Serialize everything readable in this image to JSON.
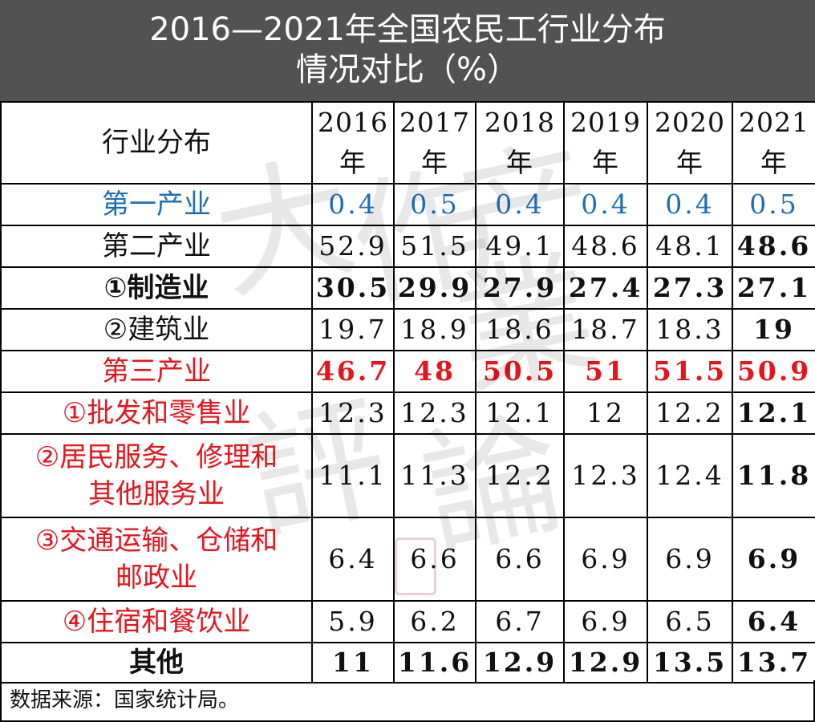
{
  "title": {
    "line1": "2016—2021年全国农民工行业分布",
    "line2": "情况对比（%）"
  },
  "header": {
    "category_label": "行业分布",
    "years": [
      {
        "top": "2016",
        "bottom": "年"
      },
      {
        "top": "2017",
        "bottom": "年"
      },
      {
        "top": "2018",
        "bottom": "年"
      },
      {
        "top": "2019",
        "bottom": "年"
      },
      {
        "top": "2020",
        "bottom": "年"
      },
      {
        "top": "2021",
        "bottom": "年"
      }
    ]
  },
  "rows": [
    {
      "label": "第一产业",
      "values": [
        "0.4",
        "0.5",
        "0.4",
        "0.4",
        "0.4",
        "0.5"
      ]
    },
    {
      "label": "第二产业",
      "values": [
        "52.9",
        "51.5",
        "49.1",
        "48.6",
        "48.1",
        "48.6"
      ]
    },
    {
      "label": "①制造业",
      "values": [
        "30.5",
        "29.9",
        "27.9",
        "27.4",
        "27.3",
        "27.1"
      ]
    },
    {
      "label": "②建筑业",
      "values": [
        "19.7",
        "18.9",
        "18.6",
        "18.7",
        "18.3",
        "19"
      ]
    },
    {
      "label": "第三产业",
      "values": [
        "46.7",
        "48",
        "50.5",
        "51",
        "51.5",
        "50.9"
      ]
    },
    {
      "label": "①批发和零售业",
      "values": [
        "12.3",
        "12.3",
        "12.1",
        "12",
        "12.2",
        "12.1"
      ]
    },
    {
      "label_line1": "②居民服务、修理和",
      "label_line2": "其他服务业",
      "values": [
        "11.1",
        "11.3",
        "12.2",
        "12.3",
        "12.4",
        "11.8"
      ]
    },
    {
      "label_line1": "③交通运输、仓储和",
      "label_line2": "邮政业",
      "values": [
        "6.4",
        "6.6",
        "6.6",
        "6.9",
        "6.9",
        "6.9"
      ]
    },
    {
      "label": "④住宿和餐饮业",
      "values": [
        "5.9",
        "6.2",
        "6.7",
        "6.9",
        "6.5",
        "6.4"
      ]
    },
    {
      "label": "其他",
      "values": [
        "11",
        "11.6",
        "12.9",
        "12.9",
        "13.5",
        "13.7"
      ]
    }
  ],
  "footer": {
    "source": "数据来源：国家统计局。"
  },
  "colors": {
    "title_bg": "#525252",
    "primary_industry": "#1f6eb5",
    "tertiary_industry": "#e8141b"
  },
  "watermark": {
    "glyphs": [
      "大",
      "作",
      "产",
      "業",
      "評",
      "論"
    ]
  }
}
